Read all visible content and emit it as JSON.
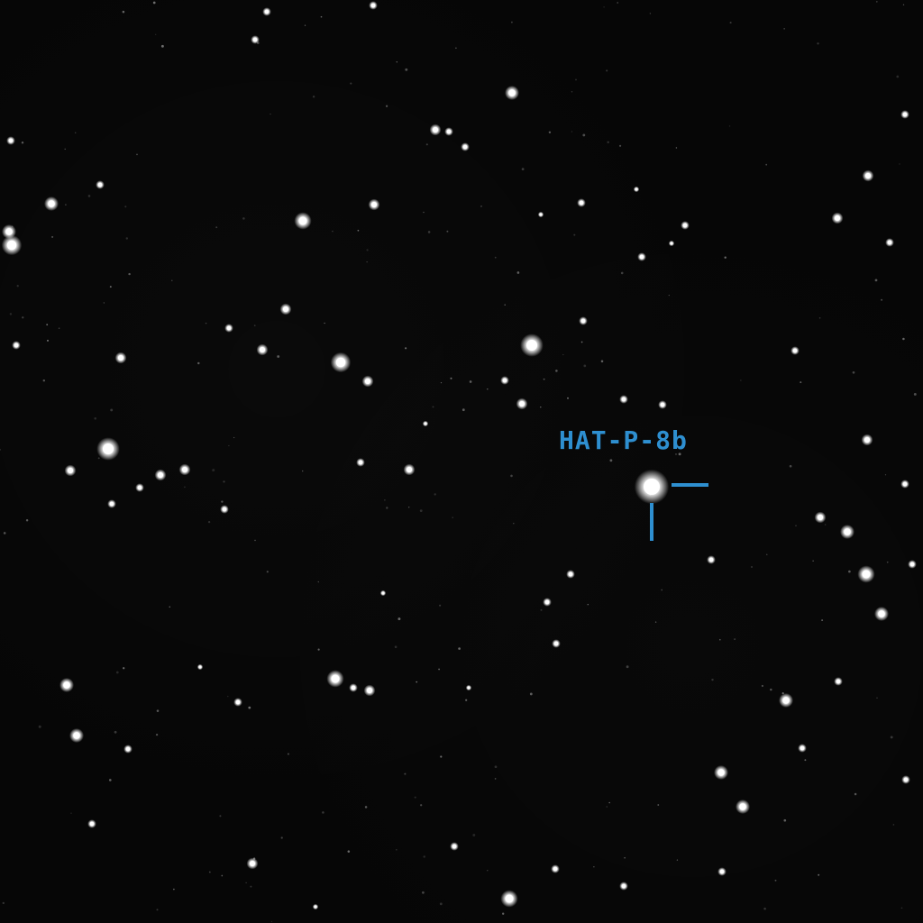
{
  "target": {
    "label": "HAT-P-8b",
    "marker_color": "#2e8fd0"
  }
}
